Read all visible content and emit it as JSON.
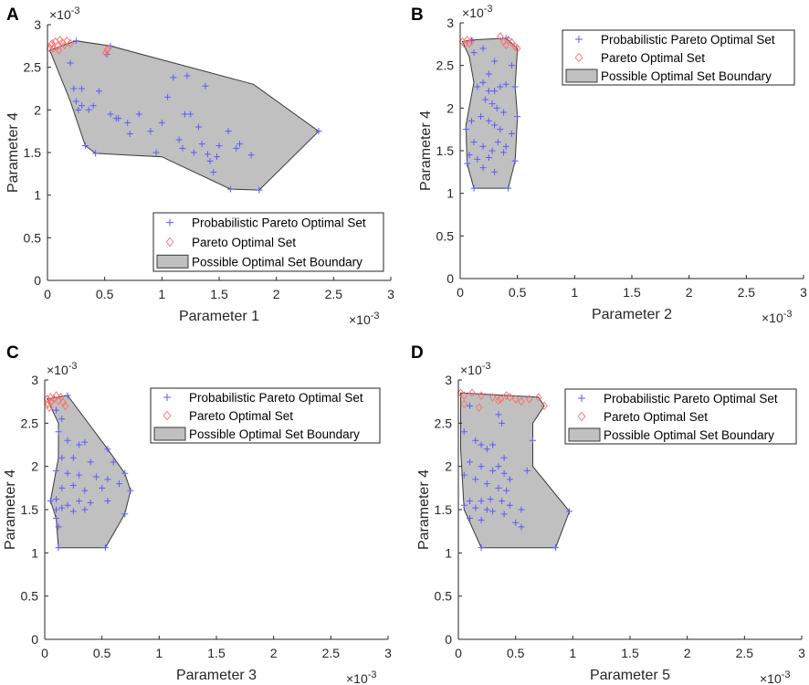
{
  "figure_colors": {
    "probabilistic_marker": "#5a5aff",
    "pareto_marker": "#ff6b6b",
    "boundary_fill": "#c0c0c0",
    "boundary_stroke": "#3a3a3a"
  },
  "chart_data": [
    {
      "panel": "A",
      "type": "scatter",
      "xlabel": "Parameter 1",
      "ylabel": "Parameter 4",
      "x_exponent": "×10",
      "y_exponent": "×10",
      "exponent_power": "-3",
      "xlim": [
        0,
        3
      ],
      "ylim": [
        0,
        3
      ],
      "xticks": [
        "0",
        "0.5",
        "1",
        "1.5",
        "2",
        "2.5",
        "3"
      ],
      "yticks": [
        "0",
        "0.5",
        "1",
        "1.5",
        "2",
        "2.5",
        "3"
      ],
      "legend": {
        "position": "bottom-right",
        "items": [
          "Probabilistic Pareto Optimal Set",
          "Pareto Optimal Set",
          "Possible Optimal Set Boundary"
        ]
      },
      "boundary": [
        [
          0.02,
          2.7
        ],
        [
          0.25,
          2.81
        ],
        [
          0.55,
          2.75
        ],
        [
          1.8,
          2.3
        ],
        [
          2.37,
          1.75
        ],
        [
          1.85,
          1.06
        ],
        [
          1.6,
          1.07
        ],
        [
          1.0,
          1.45
        ],
        [
          0.42,
          1.49
        ],
        [
          0.33,
          1.58
        ],
        [
          0.2,
          2.1
        ],
        [
          0.02,
          2.7
        ]
      ],
      "pareto_optimal_set": [
        [
          0.02,
          2.72
        ],
        [
          0.04,
          2.78
        ],
        [
          0.05,
          2.72
        ],
        [
          0.07,
          2.8
        ],
        [
          0.09,
          2.75
        ],
        [
          0.11,
          2.82
        ],
        [
          0.13,
          2.79
        ],
        [
          0.15,
          2.76
        ],
        [
          0.17,
          2.81
        ],
        [
          0.2,
          2.78
        ],
        [
          0.03,
          2.76
        ],
        [
          0.1,
          2.7
        ],
        [
          0.52,
          2.7
        ],
        [
          0.53,
          2.72
        ],
        [
          0.51,
          2.67
        ]
      ],
      "probabilistic_pareto_set": [
        [
          0.25,
          2.81
        ],
        [
          0.55,
          2.75
        ],
        [
          0.52,
          2.65
        ],
        [
          0.2,
          2.55
        ],
        [
          0.23,
          2.25
        ],
        [
          0.25,
          2.1
        ],
        [
          0.3,
          2.25
        ],
        [
          0.3,
          2.05
        ],
        [
          0.45,
          2.22
        ],
        [
          0.36,
          2.0
        ],
        [
          0.4,
          2.05
        ],
        [
          0.27,
          2.0
        ],
        [
          0.33,
          1.58
        ],
        [
          0.42,
          1.49
        ],
        [
          0.55,
          1.95
        ],
        [
          0.6,
          1.9
        ],
        [
          0.62,
          1.9
        ],
        [
          0.7,
          1.85
        ],
        [
          0.72,
          1.72
        ],
        [
          0.8,
          1.95
        ],
        [
          0.9,
          1.75
        ],
        [
          0.95,
          1.5
        ],
        [
          1.0,
          1.85
        ],
        [
          1.05,
          2.15
        ],
        [
          1.1,
          2.38
        ],
        [
          1.15,
          1.65
        ],
        [
          1.18,
          1.55
        ],
        [
          1.2,
          1.95
        ],
        [
          1.25,
          1.95
        ],
        [
          1.22,
          2.4
        ],
        [
          1.28,
          1.5
        ],
        [
          1.32,
          1.8
        ],
        [
          1.35,
          1.6
        ],
        [
          1.38,
          2.28
        ],
        [
          1.42,
          1.4
        ],
        [
          1.48,
          1.45
        ],
        [
          1.5,
          1.58
        ],
        [
          1.58,
          1.75
        ],
        [
          1.6,
          1.07
        ],
        [
          1.65,
          1.55
        ],
        [
          1.68,
          1.6
        ],
        [
          1.78,
          1.47
        ],
        [
          1.85,
          1.06
        ],
        [
          2.37,
          1.75
        ],
        [
          1.45,
          1.27
        ],
        [
          1.4,
          1.48
        ]
      ]
    },
    {
      "panel": "B",
      "type": "scatter",
      "xlabel": "Parameter 2",
      "ylabel": "Parameter 4",
      "x_exponent": "×10",
      "y_exponent": "×10",
      "exponent_power": "-3",
      "xlim": [
        0,
        3
      ],
      "ylim": [
        0,
        3
      ],
      "xticks": [
        "0",
        "0.5",
        "1",
        "1.5",
        "2",
        "2.5",
        "3"
      ],
      "yticks": [
        "0",
        "0.5",
        "1",
        "1.5",
        "2",
        "2.5",
        "3"
      ],
      "legend": {
        "position": "top-right",
        "items": [
          "Probabilistic Pareto Optimal Set",
          "Pareto Optimal Set",
          "Possible Optimal Set Boundary"
        ]
      },
      "boundary": [
        [
          0.02,
          2.78
        ],
        [
          0.1,
          2.8
        ],
        [
          0.4,
          2.82
        ],
        [
          0.5,
          2.7
        ],
        [
          0.48,
          2.25
        ],
        [
          0.5,
          1.9
        ],
        [
          0.48,
          1.38
        ],
        [
          0.42,
          1.06
        ],
        [
          0.12,
          1.06
        ],
        [
          0.06,
          1.35
        ],
        [
          0.05,
          1.8
        ],
        [
          0.12,
          2.3
        ],
        [
          0.08,
          2.6
        ],
        [
          0.02,
          2.78
        ]
      ],
      "pareto_optimal_set": [
        [
          0.02,
          2.78
        ],
        [
          0.04,
          2.75
        ],
        [
          0.06,
          2.8
        ],
        [
          0.08,
          2.76
        ],
        [
          0.1,
          2.79
        ],
        [
          0.35,
          2.84
        ],
        [
          0.38,
          2.78
        ],
        [
          0.4,
          2.74
        ],
        [
          0.42,
          2.8
        ],
        [
          0.45,
          2.77
        ],
        [
          0.48,
          2.72
        ],
        [
          0.5,
          2.7
        ]
      ],
      "probabilistic_pareto_set": [
        [
          0.1,
          2.79
        ],
        [
          0.4,
          2.82
        ],
        [
          0.12,
          2.65
        ],
        [
          0.2,
          2.7
        ],
        [
          0.3,
          2.55
        ],
        [
          0.25,
          2.4
        ],
        [
          0.45,
          2.5
        ],
        [
          0.15,
          2.25
        ],
        [
          0.2,
          2.3
        ],
        [
          0.25,
          2.2
        ],
        [
          0.3,
          2.2
        ],
        [
          0.35,
          2.25
        ],
        [
          0.4,
          2.28
        ],
        [
          0.48,
          2.25
        ],
        [
          0.22,
          2.1
        ],
        [
          0.28,
          2.05
        ],
        [
          0.32,
          2.0
        ],
        [
          0.38,
          1.95
        ],
        [
          0.5,
          1.9
        ],
        [
          0.1,
          1.85
        ],
        [
          0.18,
          1.9
        ],
        [
          0.25,
          1.85
        ],
        [
          0.3,
          1.8
        ],
        [
          0.35,
          1.75
        ],
        [
          0.45,
          1.7
        ],
        [
          0.05,
          1.75
        ],
        [
          0.12,
          1.6
        ],
        [
          0.2,
          1.55
        ],
        [
          0.28,
          1.5
        ],
        [
          0.33,
          1.6
        ],
        [
          0.4,
          1.55
        ],
        [
          0.08,
          1.45
        ],
        [
          0.15,
          1.4
        ],
        [
          0.25,
          1.42
        ],
        [
          0.38,
          1.48
        ],
        [
          0.48,
          1.38
        ],
        [
          0.06,
          1.35
        ],
        [
          0.2,
          1.3
        ],
        [
          0.3,
          1.25
        ],
        [
          0.12,
          1.06
        ],
        [
          0.42,
          1.06
        ]
      ]
    },
    {
      "panel": "C",
      "type": "scatter",
      "xlabel": "Parameter 3",
      "ylabel": "Parameter 4",
      "x_exponent": "×10",
      "y_exponent": "×10",
      "exponent_power": "-3",
      "xlim": [
        0,
        3
      ],
      "ylim": [
        0,
        3
      ],
      "xticks": [
        "0",
        "0.5",
        "1",
        "1.5",
        "2",
        "2.5",
        "3"
      ],
      "yticks": [
        "0",
        "0.5",
        "1",
        "1.5",
        "2",
        "2.5",
        "3"
      ],
      "legend": {
        "position": "top-right",
        "items": [
          "Probabilistic Pareto Optimal Set",
          "Pareto Optimal Set",
          "Possible Optimal Set Boundary"
        ]
      },
      "boundary": [
        [
          0.02,
          2.78
        ],
        [
          0.2,
          2.82
        ],
        [
          0.55,
          2.2
        ],
        [
          0.7,
          1.92
        ],
        [
          0.75,
          1.72
        ],
        [
          0.7,
          1.45
        ],
        [
          0.53,
          1.06
        ],
        [
          0.12,
          1.06
        ],
        [
          0.1,
          1.4
        ],
        [
          0.05,
          1.6
        ],
        [
          0.12,
          2.1
        ],
        [
          0.12,
          2.5
        ],
        [
          0.02,
          2.78
        ]
      ],
      "pareto_optimal_set": [
        [
          0.02,
          2.78
        ],
        [
          0.03,
          2.72
        ],
        [
          0.05,
          2.8
        ],
        [
          0.06,
          2.75
        ],
        [
          0.08,
          2.78
        ],
        [
          0.1,
          2.82
        ],
        [
          0.12,
          2.76
        ],
        [
          0.14,
          2.8
        ],
        [
          0.16,
          2.74
        ],
        [
          0.18,
          2.7
        ],
        [
          0.04,
          2.68
        ]
      ],
      "probabilistic_pareto_set": [
        [
          0.2,
          2.82
        ],
        [
          0.1,
          2.65
        ],
        [
          0.15,
          2.55
        ],
        [
          0.12,
          2.4
        ],
        [
          0.2,
          2.3
        ],
        [
          0.3,
          2.25
        ],
        [
          0.35,
          2.28
        ],
        [
          0.15,
          2.1
        ],
        [
          0.25,
          2.1
        ],
        [
          0.4,
          2.05
        ],
        [
          0.55,
          2.2
        ],
        [
          0.6,
          2.05
        ],
        [
          0.7,
          1.92
        ],
        [
          0.1,
          1.95
        ],
        [
          0.2,
          1.92
        ],
        [
          0.3,
          1.9
        ],
        [
          0.45,
          1.88
        ],
        [
          0.55,
          1.85
        ],
        [
          0.15,
          1.75
        ],
        [
          0.25,
          1.78
        ],
        [
          0.35,
          1.72
        ],
        [
          0.5,
          1.75
        ],
        [
          0.75,
          1.72
        ],
        [
          0.05,
          1.6
        ],
        [
          0.1,
          1.62
        ],
        [
          0.2,
          1.55
        ],
        [
          0.3,
          1.6
        ],
        [
          0.4,
          1.58
        ],
        [
          0.55,
          1.6
        ],
        [
          0.1,
          1.5
        ],
        [
          0.15,
          1.52
        ],
        [
          0.25,
          1.48
        ],
        [
          0.35,
          1.5
        ],
        [
          0.7,
          1.45
        ],
        [
          0.1,
          1.4
        ],
        [
          0.12,
          1.3
        ],
        [
          0.12,
          1.06
        ],
        [
          0.53,
          1.06
        ],
        [
          0.65,
          1.8
        ]
      ]
    },
    {
      "panel": "D",
      "type": "scatter",
      "xlabel": "Parameter 5",
      "ylabel": "Parameter 4",
      "x_exponent": "×10",
      "y_exponent": "×10",
      "exponent_power": "-3",
      "xlim": [
        0,
        3
      ],
      "ylim": [
        0,
        3
      ],
      "xticks": [
        "0",
        "0.5",
        "1",
        "1.5",
        "2",
        "2.5",
        "3"
      ],
      "yticks": [
        "0",
        "0.5",
        "1",
        "1.5",
        "2",
        "2.5",
        "3"
      ],
      "legend": {
        "position": "top-right",
        "items": [
          "Probabilistic Pareto Optimal Set",
          "Pareto Optimal Set",
          "Possible Optimal Set Boundary"
        ]
      },
      "boundary": [
        [
          0.02,
          2.85
        ],
        [
          0.7,
          2.8
        ],
        [
          0.75,
          2.7
        ],
        [
          0.65,
          2.5
        ],
        [
          0.65,
          2.0
        ],
        [
          0.97,
          1.48
        ],
        [
          0.85,
          1.06
        ],
        [
          0.2,
          1.06
        ],
        [
          0.05,
          1.5
        ],
        [
          0.02,
          2.2
        ],
        [
          0.02,
          2.85
        ]
      ],
      "pareto_optimal_set": [
        [
          0.02,
          2.85
        ],
        [
          0.05,
          2.82
        ],
        [
          0.05,
          2.72
        ],
        [
          0.12,
          2.85
        ],
        [
          0.2,
          2.82
        ],
        [
          0.3,
          2.8
        ],
        [
          0.35,
          2.76
        ],
        [
          0.37,
          2.78
        ],
        [
          0.42,
          2.82
        ],
        [
          0.45,
          2.8
        ],
        [
          0.5,
          2.78
        ],
        [
          0.55,
          2.75
        ],
        [
          0.62,
          2.78
        ],
        [
          0.7,
          2.8
        ],
        [
          0.75,
          2.7
        ],
        [
          0.18,
          2.68
        ]
      ],
      "probabilistic_pareto_set": [
        [
          0.1,
          2.7
        ],
        [
          0.35,
          2.6
        ],
        [
          0.38,
          2.5
        ],
        [
          0.05,
          2.4
        ],
        [
          0.15,
          2.3
        ],
        [
          0.2,
          2.25
        ],
        [
          0.25,
          2.2
        ],
        [
          0.3,
          2.25
        ],
        [
          0.4,
          2.1
        ],
        [
          0.65,
          2.3
        ],
        [
          0.1,
          2.05
        ],
        [
          0.2,
          2.0
        ],
        [
          0.3,
          1.95
        ],
        [
          0.35,
          2.0
        ],
        [
          0.4,
          1.92
        ],
        [
          0.45,
          1.85
        ],
        [
          0.6,
          1.95
        ],
        [
          0.05,
          1.9
        ],
        [
          0.15,
          1.85
        ],
        [
          0.25,
          1.8
        ],
        [
          0.35,
          1.75
        ],
        [
          0.42,
          1.72
        ],
        [
          0.1,
          1.6
        ],
        [
          0.2,
          1.6
        ],
        [
          0.28,
          1.62
        ],
        [
          0.38,
          1.6
        ],
        [
          0.45,
          1.55
        ],
        [
          0.05,
          1.55
        ],
        [
          0.15,
          1.52
        ],
        [
          0.25,
          1.5
        ],
        [
          0.3,
          1.48
        ],
        [
          0.4,
          1.45
        ],
        [
          0.55,
          1.5
        ],
        [
          0.97,
          1.48
        ],
        [
          0.1,
          1.4
        ],
        [
          0.2,
          1.38
        ],
        [
          0.5,
          1.35
        ],
        [
          0.55,
          1.3
        ],
        [
          0.2,
          1.06
        ],
        [
          0.85,
          1.06
        ]
      ]
    }
  ]
}
